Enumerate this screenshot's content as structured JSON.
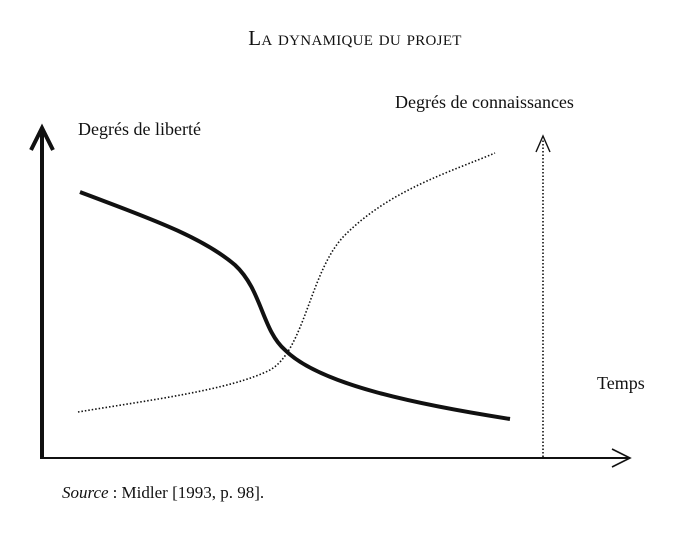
{
  "title": "La dynamique du projet",
  "labels": {
    "freedom": "Degrés de liberté",
    "knowledge": "Degrés de connaissances",
    "time": "Temps"
  },
  "source": {
    "label": "Source",
    "text": ": Midler [1993, p. 98]."
  }
}
